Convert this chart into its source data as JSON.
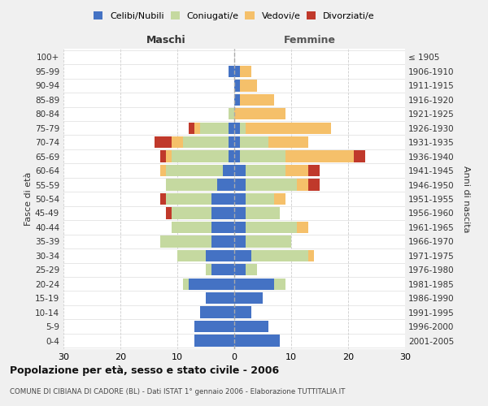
{
  "age_groups": [
    "0-4",
    "5-9",
    "10-14",
    "15-19",
    "20-24",
    "25-29",
    "30-34",
    "35-39",
    "40-44",
    "45-49",
    "50-54",
    "55-59",
    "60-64",
    "65-69",
    "70-74",
    "75-79",
    "80-84",
    "85-89",
    "90-94",
    "95-99",
    "100+"
  ],
  "birth_years": [
    "2001-2005",
    "1996-2000",
    "1991-1995",
    "1986-1990",
    "1981-1985",
    "1976-1980",
    "1971-1975",
    "1966-1970",
    "1961-1965",
    "1956-1960",
    "1951-1955",
    "1946-1950",
    "1941-1945",
    "1936-1940",
    "1931-1935",
    "1926-1930",
    "1921-1925",
    "1916-1920",
    "1911-1915",
    "1906-1910",
    "≤ 1905"
  ],
  "males": {
    "celibi": [
      7,
      7,
      6,
      5,
      8,
      4,
      5,
      4,
      4,
      4,
      4,
      3,
      2,
      1,
      1,
      1,
      0,
      0,
      0,
      1,
      0
    ],
    "coniugati": [
      0,
      0,
      0,
      0,
      1,
      1,
      5,
      9,
      7,
      7,
      8,
      9,
      10,
      10,
      8,
      5,
      1,
      0,
      0,
      0,
      0
    ],
    "vedovi": [
      0,
      0,
      0,
      0,
      0,
      0,
      0,
      0,
      0,
      0,
      0,
      0,
      1,
      1,
      2,
      1,
      0,
      0,
      0,
      0,
      0
    ],
    "divorziati": [
      0,
      0,
      0,
      0,
      0,
      0,
      0,
      0,
      0,
      1,
      1,
      0,
      0,
      1,
      3,
      1,
      0,
      0,
      0,
      0,
      0
    ]
  },
  "females": {
    "nubili": [
      8,
      6,
      3,
      5,
      7,
      2,
      3,
      2,
      2,
      2,
      2,
      2,
      2,
      1,
      1,
      1,
      0,
      1,
      1,
      1,
      0
    ],
    "coniugate": [
      0,
      0,
      0,
      0,
      2,
      2,
      10,
      8,
      9,
      6,
      5,
      9,
      7,
      8,
      5,
      1,
      0,
      0,
      0,
      0,
      0
    ],
    "vedove": [
      0,
      0,
      0,
      0,
      0,
      0,
      1,
      0,
      2,
      0,
      2,
      2,
      4,
      12,
      7,
      15,
      9,
      6,
      3,
      2,
      0
    ],
    "divorziate": [
      0,
      0,
      0,
      0,
      0,
      0,
      0,
      0,
      0,
      0,
      0,
      2,
      2,
      2,
      0,
      0,
      0,
      0,
      0,
      0,
      0
    ]
  },
  "color_celibi": "#4472c4",
  "color_coniugati": "#c5d9a0",
  "color_vedovi": "#f5c06a",
  "color_divorziati": "#c0392b",
  "xlim": 30,
  "title": "Popolazione per età, sesso e stato civile - 2006",
  "subtitle": "COMUNE DI CIBIANA DI CADORE (BL) - Dati ISTAT 1° gennaio 2006 - Elaborazione TUTTITALIA.IT",
  "ylabel_left": "Fasce di età",
  "ylabel_right": "Anni di nascita",
  "xlabel_left": "Maschi",
  "xlabel_right": "Femmine",
  "bg_color": "#f0f0f0",
  "plot_bg_color": "#ffffff"
}
